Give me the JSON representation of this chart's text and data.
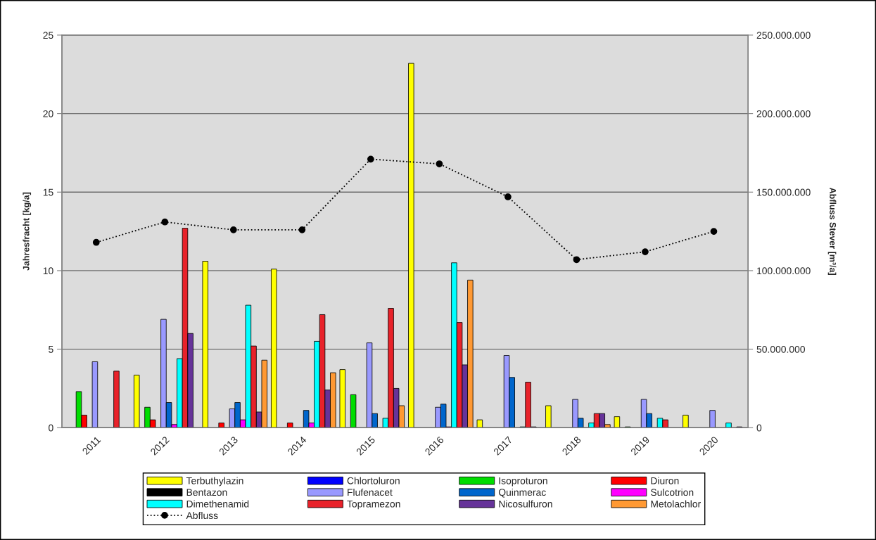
{
  "chart_data": {
    "type": "bar",
    "categories": [
      "2011",
      "2012",
      "2013",
      "2014",
      "2015",
      "2016",
      "2017",
      "2018",
      "2019",
      "2020"
    ],
    "ylabel": "Jahresfracht [kg/a]",
    "y2label": "Abfluss Stever [m³/a]",
    "ylim": [
      0,
      25
    ],
    "yticks": [
      0,
      5,
      10,
      15,
      20,
      25
    ],
    "y2lim": [
      0,
      250000000
    ],
    "y2ticks": [
      0,
      {
        "value": 50000000,
        "label": "50.000.000"
      },
      {
        "value": 100000000,
        "label": "100.000.000"
      },
      {
        "value": 150000000,
        "label": "150.000.000"
      },
      {
        "value": 200000000,
        "label": "200.000.000"
      },
      {
        "value": 250000000,
        "label": "250.000.000"
      }
    ],
    "grid": "y",
    "legend": "bottom",
    "series": [
      {
        "name": "Terbuthylazin",
        "color": "#ffff00",
        "values": [
          null,
          3.35,
          10.6,
          10.1,
          3.7,
          23.2,
          0.5,
          1.4,
          0.7,
          0.8
        ]
      },
      {
        "name": "Chlortoluron",
        "color": "#0000ff",
        "values": [
          null,
          null,
          null,
          null,
          null,
          null,
          null,
          null,
          null,
          null
        ]
      },
      {
        "name": "Isoproturon",
        "color": "#00dd00",
        "values": [
          2.3,
          1.3,
          null,
          null,
          2.1,
          null,
          null,
          null,
          0.05,
          null
        ]
      },
      {
        "name": "Diuron",
        "color": "#ff0000",
        "values": [
          0.8,
          0.5,
          0.3,
          0.3,
          null,
          null,
          null,
          null,
          null,
          null
        ]
      },
      {
        "name": "Bentazon",
        "color": "#000000",
        "values": [
          null,
          null,
          null,
          null,
          null,
          null,
          null,
          null,
          null,
          null
        ]
      },
      {
        "name": "Flufenacet",
        "color": "#9999ff",
        "values": [
          4.2,
          6.9,
          1.2,
          null,
          5.4,
          1.3,
          4.6,
          1.8,
          1.8,
          1.1
        ]
      },
      {
        "name": "Quinmerac",
        "color": "#0066cc",
        "values": [
          null,
          1.6,
          1.6,
          1.1,
          0.9,
          1.5,
          3.2,
          0.6,
          0.9,
          null
        ]
      },
      {
        "name": "Sulcotrion",
        "color": "#ff00ff",
        "values": [
          null,
          0.2,
          0.5,
          0.3,
          null,
          0.05,
          null,
          null,
          null,
          null
        ]
      },
      {
        "name": "Dimethenamid",
        "color": "#00ffff",
        "values": [
          null,
          4.4,
          7.8,
          5.5,
          0.6,
          10.5,
          0.05,
          0.3,
          0.6,
          0.3
        ]
      },
      {
        "name": "Topramezon",
        "color": "#e8222a",
        "values": [
          3.6,
          12.7,
          5.2,
          7.2,
          7.6,
          6.7,
          2.9,
          0.9,
          0.5,
          null
        ]
      },
      {
        "name": "Nicosulfuron",
        "color": "#663399",
        "values": [
          null,
          6.0,
          1.0,
          2.4,
          2.5,
          4.0,
          0.05,
          0.9,
          null,
          0.05
        ]
      },
      {
        "name": "Metolachlor",
        "color": "#ff9933",
        "values": [
          null,
          null,
          4.3,
          3.5,
          1.4,
          9.4,
          null,
          0.2,
          null,
          null
        ]
      },
      {
        "name": "Abfluss",
        "type": "line",
        "axis": "y2",
        "color": "#000000",
        "marker": "circle",
        "line_style": "dotted",
        "values": [
          118000000,
          131000000,
          126000000,
          126000000,
          171000000,
          168000000,
          147000000,
          107000000,
          112000000,
          125000000
        ]
      }
    ]
  }
}
